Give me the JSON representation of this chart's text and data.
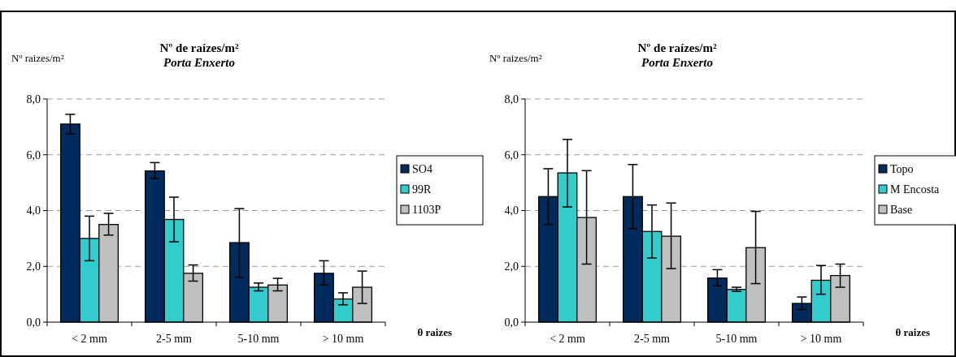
{
  "chart_data": [
    {
      "type": "bar",
      "title": "Nº de raízes/m²",
      "subtitle": "Porta Enxerto",
      "ylabel": "Nº raizes/m²",
      "xlabel": "θ raizes",
      "categories": [
        "< 2 mm",
        "2-5 mm",
        "5-10 mm",
        "> 10 mm"
      ],
      "series": [
        {
          "name": "SO4",
          "color": "#002b5c",
          "values": [
            7.1,
            5.42,
            2.85,
            1.75
          ],
          "errors": [
            [
              6.75,
              7.45
            ],
            [
              5.15,
              5.72
            ],
            [
              1.6,
              4.07
            ],
            [
              1.33,
              2.2
            ]
          ]
        },
        {
          "name": "99R",
          "color": "#33cccc",
          "values": [
            3.0,
            3.68,
            1.25,
            0.83
          ],
          "errors": [
            [
              2.2,
              3.8
            ],
            [
              2.88,
              4.48
            ],
            [
              1.12,
              1.4
            ],
            [
              0.62,
              1.05
            ]
          ]
        },
        {
          "name": "1103P",
          "color": "#c0c0c0",
          "values": [
            3.5,
            1.75,
            1.33,
            1.25
          ],
          "errors": [
            [
              3.12,
              3.9
            ],
            [
              1.47,
              2.05
            ],
            [
              1.12,
              1.57
            ],
            [
              0.67,
              1.83
            ]
          ]
        }
      ],
      "ylim": [
        0,
        8
      ],
      "yticks": [
        {
          "value": 0,
          "label": "0,0"
        },
        {
          "value": 2,
          "label": "2,0"
        },
        {
          "value": 4,
          "label": "4,0"
        },
        {
          "value": 6,
          "label": "6,0"
        },
        {
          "value": 8,
          "label": "8,0"
        }
      ],
      "grid": "y",
      "legend": "right"
    },
    {
      "type": "bar",
      "title": "Nº de raízes/m²",
      "subtitle": "Porta Enxerto",
      "ylabel": "Nº raizes/m²",
      "xlabel": "θ raizes",
      "categories": [
        "< 2 mm",
        "2-5 mm",
        "5-10 mm",
        "> 10 mm"
      ],
      "series": [
        {
          "name": "Topo",
          "color": "#002b5c",
          "values": [
            4.5,
            4.5,
            1.58,
            0.67
          ],
          "errors": [
            [
              3.5,
              5.5
            ],
            [
              3.35,
              5.65
            ],
            [
              1.3,
              1.88
            ],
            [
              0.45,
              0.9
            ]
          ]
        },
        {
          "name": "M Encosta",
          "color": "#33cccc",
          "values": [
            5.35,
            3.25,
            1.17,
            1.5
          ],
          "errors": [
            [
              4.13,
              6.55
            ],
            [
              2.3,
              4.2
            ],
            [
              1.1,
              1.25
            ],
            [
              1.0,
              2.03
            ]
          ]
        },
        {
          "name": "Base",
          "color": "#c0c0c0",
          "values": [
            3.75,
            3.08,
            2.67,
            1.67
          ],
          "errors": [
            [
              2.08,
              5.43
            ],
            [
              1.92,
              4.27
            ],
            [
              1.38,
              3.97
            ],
            [
              1.25,
              2.08
            ]
          ]
        }
      ],
      "ylim": [
        0,
        8
      ],
      "yticks": [
        {
          "value": 0,
          "label": "0,0"
        },
        {
          "value": 2,
          "label": "2,0"
        },
        {
          "value": 4,
          "label": "4,0"
        },
        {
          "value": 6,
          "label": "6,0"
        },
        {
          "value": 8,
          "label": "8,0"
        }
      ],
      "grid": "y",
      "legend": "right"
    }
  ]
}
